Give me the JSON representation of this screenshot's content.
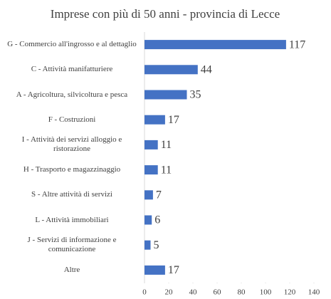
{
  "chart_data": {
    "type": "bar",
    "orientation": "horizontal",
    "title": "Imprese con più di 50 anni - provincia di Lecce",
    "categories": [
      "G - Commercio all'ingrosso e al dettaglio",
      "C - Attività manifatturiere",
      "A - Agricoltura, silvicoltura e pesca",
      "F - Costruzioni",
      "I - Attività dei servizi alloggio e ristorazione",
      "H - Trasporto e magazzinaggio",
      "S - Altre attività di servizi",
      "L - Attività immobiliari",
      "J - Servizi di informazione e comunicazione",
      "Altre"
    ],
    "values": [
      117,
      44,
      35,
      17,
      11,
      11,
      7,
      6,
      5,
      17
    ],
    "color": "#4472c4",
    "xlim": [
      0,
      140
    ],
    "xticks": [
      0,
      20,
      40,
      60,
      80,
      100,
      120,
      140
    ],
    "grid": false
  }
}
